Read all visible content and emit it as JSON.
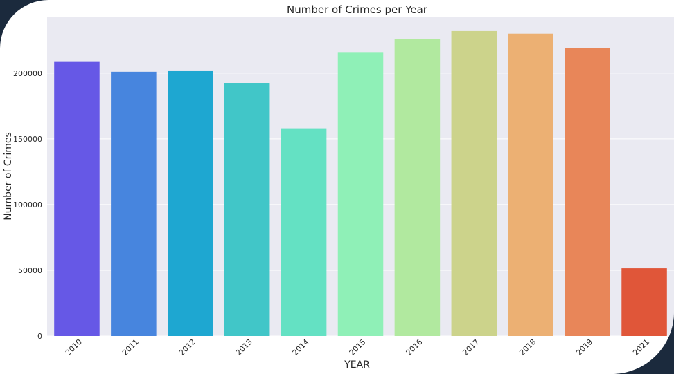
{
  "chart_data": {
    "type": "bar",
    "title": "Number of Crimes per Year",
    "xlabel": "YEAR",
    "ylabel": "Number of Crimes",
    "categories": [
      "2010",
      "2011",
      "2012",
      "2013",
      "2014",
      "2015",
      "2016",
      "2017",
      "2018",
      "2019",
      "2021"
    ],
    "values": [
      209000,
      201000,
      202000,
      192500,
      158000,
      216000,
      226000,
      232000,
      230000,
      219000,
      51500
    ],
    "colors": [
      "#6658e6",
      "#4785de",
      "#1ea7d1",
      "#41c6c8",
      "#64e1c3",
      "#8ff0b7",
      "#b1e99f",
      "#ccd38b",
      "#ecb073",
      "#e88659",
      "#e05639"
    ],
    "ylim": [
      0,
      243000
    ],
    "yticks": [
      0,
      50000,
      100000,
      150000,
      200000
    ],
    "ytick_labels": [
      "0",
      "50000",
      "100000",
      "150000",
      "200000"
    ],
    "grid": true,
    "background": "#eaeaf2"
  }
}
